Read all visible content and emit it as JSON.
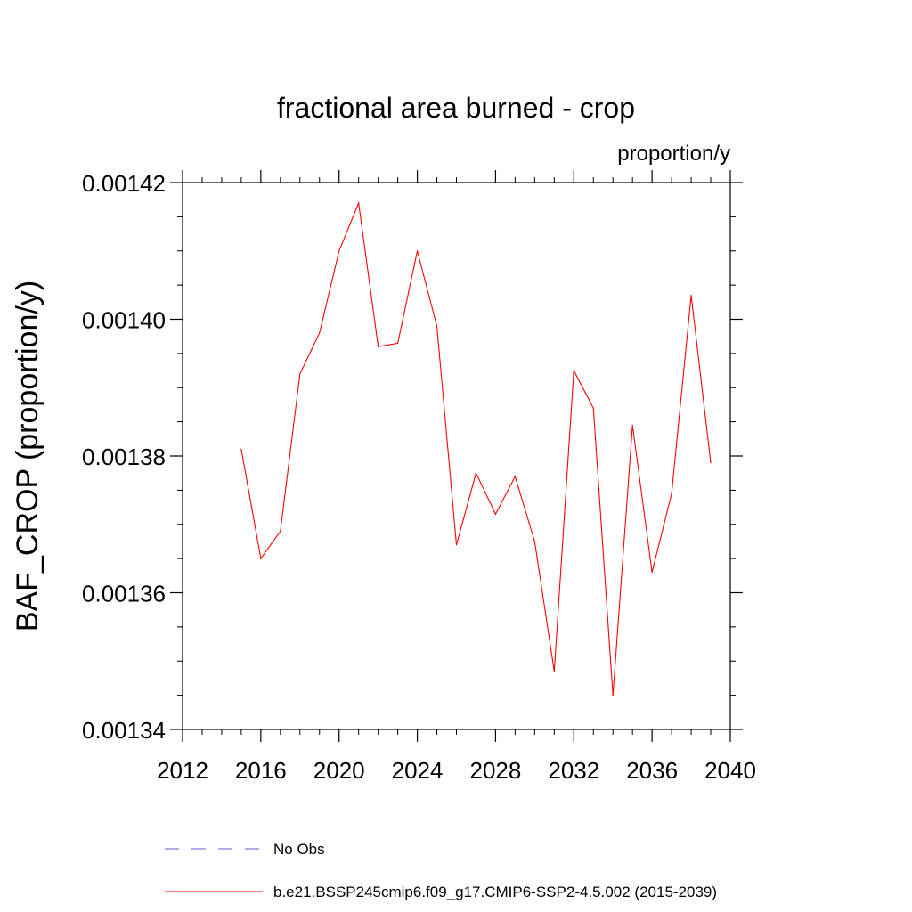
{
  "chart_data": {
    "type": "line",
    "title": "fractional area burned - crop",
    "units_label": "proportion/y",
    "ylabel": "BAF_CROP  (proportion/y)",
    "xlabel": "",
    "xlim": [
      2012,
      2040
    ],
    "ylim": [
      0.00134,
      0.00142
    ],
    "x_major_ticks": [
      2012,
      2016,
      2020,
      2024,
      2028,
      2032,
      2036,
      2040
    ],
    "x_tick_labels": [
      "2012",
      "2016",
      "2020",
      "2024",
      "2028",
      "2032",
      "2036",
      "2040"
    ],
    "y_major_ticks": [
      0.00134,
      0.00136,
      0.00138,
      0.0014,
      0.00142
    ],
    "y_tick_labels": [
      "0.00134",
      "0.00136",
      "0.00138",
      "0.00140",
      "0.00142"
    ],
    "series": [
      {
        "name": "b.e21.BSSP245cmip6.f09_g17.CMIP6-SSP2-4.5.002 (2015-2039)",
        "color": "#ff0000",
        "style": "solid",
        "x": [
          2015,
          2016,
          2017,
          2018,
          2019,
          2020,
          2021,
          2022,
          2023,
          2024,
          2025,
          2026,
          2027,
          2028,
          2029,
          2030,
          2031,
          2032,
          2033,
          2034,
          2035,
          2036,
          2037,
          2038,
          2039
        ],
        "values": [
          0.001381,
          0.001365,
          0.001369,
          0.001392,
          0.001398,
          0.00141,
          0.001417,
          0.001396,
          0.0013965,
          0.00141,
          0.001399,
          0.001367,
          0.0013775,
          0.0013715,
          0.001377,
          0.0013675,
          0.0013485,
          0.0013925,
          0.001387,
          0.001345,
          0.0013845,
          0.001363,
          0.0013745,
          0.0014035,
          0.001379
        ]
      }
    ],
    "legend": [
      {
        "label": "No Obs",
        "color": "#6a5acd",
        "style": "dashed"
      },
      {
        "label": "b.e21.BSSP245cmip6.f09_g17.CMIP6-SSP2-4.5.002 (2015-2039)",
        "color": "#ff0000",
        "style": "solid"
      }
    ],
    "legend_position": "bottom"
  }
}
